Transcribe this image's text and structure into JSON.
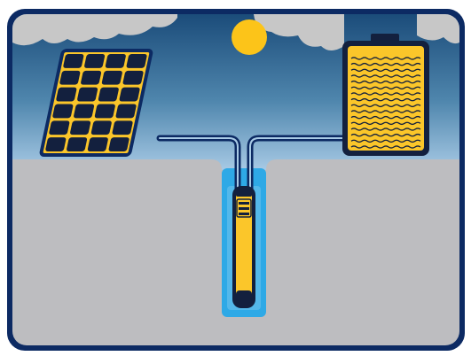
{
  "colors": {
    "frame": "#0c2a63",
    "sky_top": "#1b4c7a",
    "sky_mid": "#4f86ad",
    "sky_horizon": "#a9cbe6",
    "cloud": "#c7c7c7",
    "ground": "#bdbdc0",
    "sun": "#fcc419",
    "accent_yellow": "#fbc62a",
    "panel_dark": "#13203e",
    "water": "#2ea9e6",
    "water_pale": "#9ad3f2"
  },
  "scene": {
    "solar_panel": {
      "rows": 6,
      "cols": 4
    },
    "battery": {
      "wave_lines": 16
    },
    "pump": {
      "level_bars": 3
    }
  },
  "icons": {
    "sun": "sun-icon",
    "cloud": "cloud-icon",
    "solar_panel": "solar-panel-icon",
    "battery": "battery-icon",
    "pump": "submersible-pump-icon",
    "cable": "cable-icon",
    "well": "borehole-well-icon"
  }
}
